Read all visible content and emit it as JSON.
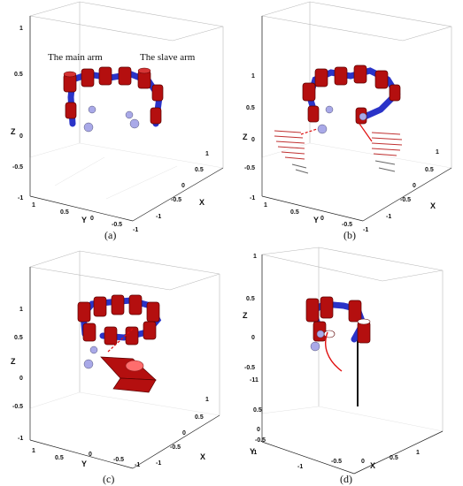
{
  "captions": {
    "a": "(a)",
    "b": "(b)",
    "c": "(c)",
    "d": "(d)"
  },
  "arm_labels": {
    "main": "The main arm",
    "slave": "The slave arm"
  },
  "axes": {
    "x": "X",
    "y": "Y",
    "z": "Z"
  },
  "ticks": {
    "z": [
      "1",
      "0.5",
      "0",
      "-0.5",
      "-1"
    ],
    "y": [
      "1",
      "0.5",
      "0",
      "-0.5",
      "-1"
    ],
    "x": [
      "1",
      "0.5",
      "0",
      "-0.5",
      "-1"
    ]
  },
  "colors": {
    "joint": "#b40f0f",
    "link": "#2a33c8",
    "target": "#a9a9e8",
    "trajectory": "#e01010"
  }
}
